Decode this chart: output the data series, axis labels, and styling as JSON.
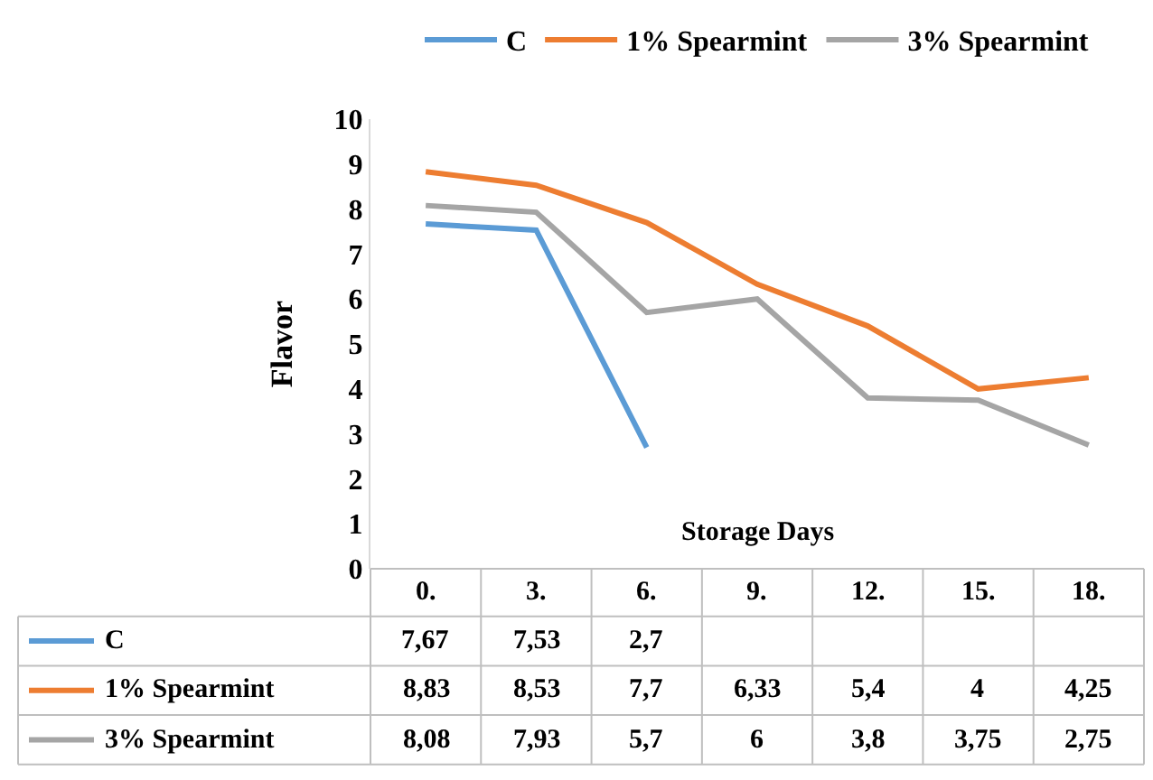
{
  "chart_data": {
    "type": "line",
    "xlabel": "Storage Days",
    "ylabel": "Flavor",
    "categories": [
      "0.",
      "3.",
      "6.",
      "9.",
      "12.",
      "15.",
      "18."
    ],
    "series": [
      {
        "name": "C",
        "color": "#5b9bd5",
        "values": [
          7.67,
          7.53,
          2.7,
          null,
          null,
          null,
          null
        ],
        "value_labels": [
          "7,67",
          "7,53",
          "2,7",
          null,
          null,
          null,
          null
        ]
      },
      {
        "name": "1% Spearmint",
        "color": "#ed7d31",
        "values": [
          8.83,
          8.53,
          7.7,
          6.33,
          5.4,
          4,
          4.25
        ],
        "value_labels": [
          "8,83",
          "8,53",
          "7,7",
          "6,33",
          "5,4",
          "4",
          "4,25"
        ]
      },
      {
        "name": "3% Spearmint",
        "color": "#a5a5a5",
        "values": [
          8.08,
          7.93,
          5.7,
          6,
          3.8,
          3.75,
          2.75
        ],
        "value_labels": [
          "8,08",
          "7,93",
          "5,7",
          "6",
          "3,8",
          "3,75",
          "2,75"
        ]
      }
    ],
    "ylim": [
      0,
      10
    ],
    "yticks": [
      0,
      1,
      2,
      3,
      4,
      5,
      6,
      7,
      8,
      9,
      10
    ],
    "legend": "top",
    "marker": "none",
    "line_style": "solid"
  }
}
